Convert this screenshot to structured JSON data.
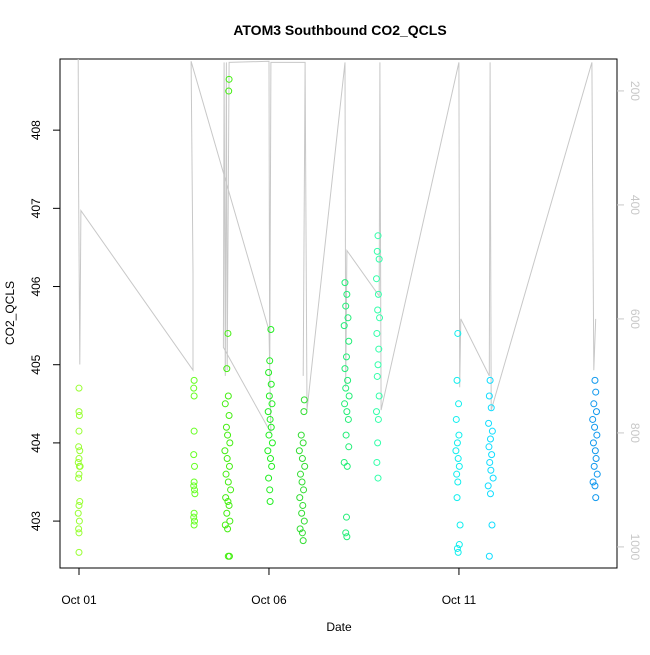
{
  "chart_data": {
    "type": "scatter",
    "title": "ATOM3 Southbound CO2_QCLS",
    "x_label": "Date",
    "y_label": "CO2_QCLS",
    "xlim": [
      0.5,
      15.16
    ],
    "xticks": [
      {
        "value": 1,
        "label": "Oct 01"
      },
      {
        "value": 6,
        "label": "Oct 06"
      },
      {
        "value": 11,
        "label": "Oct 11"
      }
    ],
    "ylim": [
      402.4,
      408.91
    ],
    "yticks": [
      403,
      404,
      405,
      406,
      407,
      408
    ],
    "y2lim": [
      1037,
      144
    ],
    "y2ticks": [
      200,
      400,
      600,
      800,
      1000
    ],
    "series": [
      {
        "color": "#99ff33",
        "x": [
          1.0,
          1.0,
          1.01,
          1.0,
          0.99,
          1.02,
          1.0,
          0.98,
          1.01,
          1.03,
          1.0,
          0.99,
          1.02,
          1.0,
          0.98,
          1.01,
          0.99,
          1.0,
          1.0
        ],
        "values": [
          404.7,
          404.4,
          404.35,
          404.15,
          403.95,
          403.9,
          403.8,
          403.75,
          403.7,
          403.7,
          403.6,
          403.55,
          403.25,
          403.2,
          403.1,
          403.0,
          402.9,
          402.85,
          402.6
        ]
      },
      {
        "color": "#66ff22",
        "x": [
          4.03,
          4.02,
          4.03,
          4.03,
          4.02,
          4.04,
          4.03,
          4.02,
          4.04,
          4.05,
          4.03,
          4.02,
          4.04,
          4.03
        ],
        "values": [
          404.8,
          404.7,
          404.6,
          404.15,
          403.85,
          403.7,
          403.5,
          403.45,
          403.4,
          403.35,
          403.1,
          403.05,
          403.0,
          402.95
        ]
      },
      {
        "color": "#44ee11",
        "x": [
          4.95,
          4.94,
          4.92,
          4.89,
          4.93,
          4.85,
          4.95,
          4.88,
          4.91,
          4.97,
          4.84,
          4.9,
          4.96,
          4.87,
          4.93,
          4.99,
          4.86,
          4.92,
          4.95,
          4.89,
          4.97,
          4.85,
          4.91,
          4.93,
          4.96
        ],
        "values": [
          408.65,
          408.5,
          405.4,
          404.95,
          404.6,
          404.5,
          404.35,
          404.2,
          404.1,
          404.0,
          403.9,
          403.8,
          403.7,
          403.6,
          403.5,
          403.4,
          403.3,
          403.25,
          403.2,
          403.1,
          403.0,
          402.95,
          402.9,
          402.55,
          402.55
        ]
      },
      {
        "color": "#22ee22",
        "x": [
          6.05,
          6.02,
          5.99,
          6.06,
          6.01,
          6.08,
          5.98,
          6.03,
          6.06,
          6.0,
          6.09,
          5.97,
          6.04,
          6.07,
          5.99,
          6.02,
          6.03
        ],
        "values": [
          405.45,
          405.05,
          404.9,
          404.75,
          404.6,
          404.5,
          404.4,
          404.3,
          404.2,
          404.1,
          404.0,
          403.9,
          403.8,
          403.7,
          403.55,
          403.4,
          403.25
        ]
      },
      {
        "color": "#33dd33",
        "x": [
          6.93,
          6.92,
          6.85,
          6.9,
          6.8,
          6.88,
          6.94,
          6.83,
          6.87,
          6.91,
          6.81,
          6.89,
          6.86,
          6.93,
          6.82,
          6.88,
          6.9
        ],
        "values": [
          404.55,
          404.4,
          404.1,
          404.0,
          403.9,
          403.8,
          403.7,
          403.6,
          403.5,
          403.4,
          403.3,
          403.2,
          403.1,
          403.0,
          402.9,
          402.85,
          402.75
        ]
      },
      {
        "color": "#22ee77",
        "x": [
          8.0,
          8.05,
          8.02,
          8.08,
          7.98,
          8.1,
          8.04,
          8.0,
          8.07,
          8.02,
          8.11,
          7.99,
          8.05,
          8.09,
          8.03,
          8.1,
          7.98,
          8.06,
          8.04,
          8.02,
          8.05
        ],
        "values": [
          406.05,
          405.9,
          405.75,
          405.6,
          405.5,
          405.3,
          405.1,
          404.95,
          404.8,
          404.7,
          404.6,
          404.5,
          404.4,
          404.3,
          404.1,
          403.95,
          403.75,
          403.7,
          403.05,
          402.85,
          402.8
        ]
      },
      {
        "color": "#33ffaa",
        "x": [
          8.87,
          8.85,
          8.9,
          8.83,
          8.88,
          8.86,
          8.91,
          8.84,
          8.89,
          8.87,
          8.85,
          8.9,
          8.83,
          8.88,
          8.86,
          8.84,
          8.87
        ],
        "values": [
          406.65,
          406.45,
          406.35,
          406.1,
          405.9,
          405.7,
          405.6,
          405.4,
          405.2,
          405.0,
          404.85,
          404.6,
          404.4,
          404.3,
          404.0,
          403.75,
          403.55
        ]
      },
      {
        "color": "#11eeee",
        "x": [
          10.97,
          10.95,
          10.99,
          10.93,
          11.0,
          10.96,
          10.92,
          10.98,
          11.01,
          10.94,
          10.97,
          10.95,
          11.03,
          11.01,
          10.96,
          10.98
        ],
        "values": [
          405.4,
          404.8,
          404.5,
          404.3,
          404.1,
          404.0,
          403.9,
          403.8,
          403.7,
          403.6,
          403.5,
          403.3,
          402.95,
          402.7,
          402.65,
          402.6
        ]
      },
      {
        "color": "#11ddff",
        "x": [
          11.82,
          11.8,
          11.85,
          11.78,
          11.88,
          11.83,
          11.79,
          11.86,
          11.81,
          11.84,
          11.9,
          11.77,
          11.83,
          11.87,
          11.8
        ],
        "values": [
          404.8,
          404.6,
          404.45,
          404.25,
          404.15,
          404.05,
          403.95,
          403.85,
          403.75,
          403.65,
          403.55,
          403.45,
          403.35,
          402.95,
          402.55
        ]
      },
      {
        "color": "#1199ee",
        "x": [
          14.58,
          14.6,
          14.55,
          14.62,
          14.52,
          14.57,
          14.63,
          14.54,
          14.59,
          14.61,
          14.56,
          14.64,
          14.53,
          14.58,
          14.6
        ],
        "values": [
          404.8,
          404.65,
          404.5,
          404.4,
          404.3,
          404.2,
          404.1,
          404.0,
          403.9,
          403.8,
          403.7,
          403.6,
          403.5,
          403.45,
          403.3
        ]
      },
      {
        "type": "line",
        "axis": "y2",
        "color": "#c8c8c8",
        "x": [
          0.98,
          0.99,
          1.02,
          1.05,
          4.0,
          4.0,
          3.95,
          6.0,
          6.05,
          4.8,
          4.82,
          4.85,
          4.88,
          4.9,
          4.95,
          6.0,
          6.02,
          6.05,
          6.95,
          6.9,
          6.95,
          7.0,
          8.0,
          8.02,
          8.05,
          8.9,
          8.92,
          8.95,
          11.0,
          11.02,
          11.05,
          11.8,
          11.82,
          11.85,
          14.5,
          14.55,
          14.6
        ],
        "values": [
          144,
          370,
          680,
          410,
          690,
          520,
          148,
          620,
          800,
          650,
          150,
          700,
          150,
          690,
          150,
          148,
          720,
          150,
          150,
          700,
          150,
          760,
          150,
          720,
          480,
          560,
          150,
          760,
          150,
          720,
          600,
          700,
          150,
          760,
          150,
          690,
          600
        ]
      }
    ]
  }
}
